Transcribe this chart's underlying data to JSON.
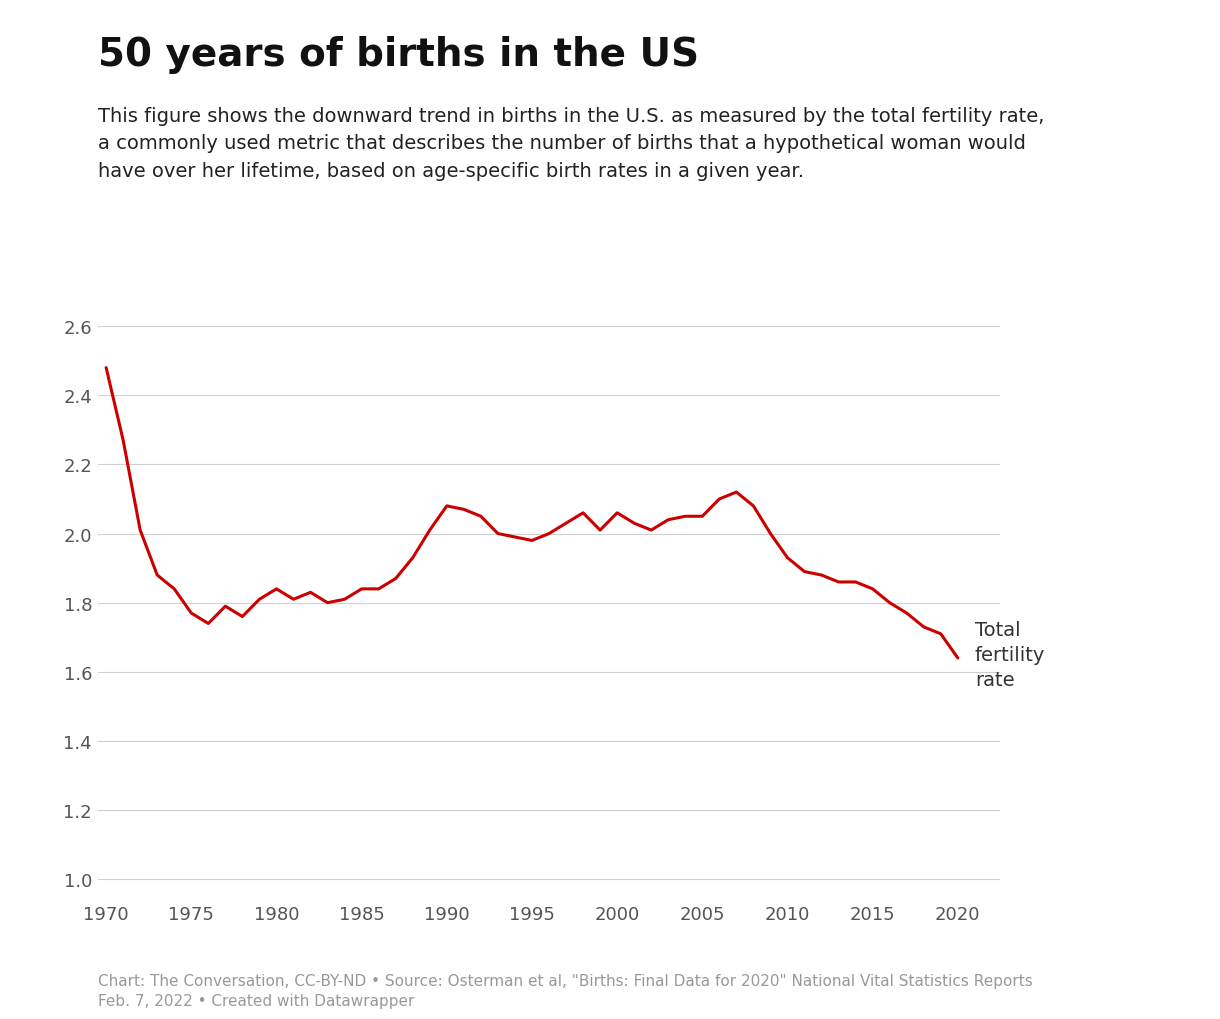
{
  "title": "50 years of births in the US",
  "subtitle": "This figure shows the downward trend in births in the U.S. as measured by the total fertility rate,\na commonly used metric that describes the number of births that a hypothetical woman would\nhave over her lifetime, based on age-specific birth rates in a given year.",
  "footnote": "Chart: The Conversation, CC-BY-ND • Source: Osterman et al, \"Births: Final Data for 2020\" National Vital Statistics Reports\nFeb. 7, 2022 • Created with Datawrapper",
  "line_color": "#cc0000",
  "line_label": "Total\nfertility\nrate",
  "background_color": "#ffffff",
  "years": [
    1970,
    1971,
    1972,
    1973,
    1974,
    1975,
    1976,
    1977,
    1978,
    1979,
    1980,
    1981,
    1982,
    1983,
    1984,
    1985,
    1986,
    1987,
    1988,
    1989,
    1990,
    1991,
    1992,
    1993,
    1994,
    1995,
    1996,
    1997,
    1998,
    1999,
    2000,
    2001,
    2002,
    2003,
    2004,
    2005,
    2006,
    2007,
    2008,
    2009,
    2010,
    2011,
    2012,
    2013,
    2014,
    2015,
    2016,
    2017,
    2018,
    2019,
    2020
  ],
  "values": [
    2.48,
    2.27,
    2.01,
    1.88,
    1.84,
    1.77,
    1.74,
    1.79,
    1.76,
    1.81,
    1.84,
    1.81,
    1.83,
    1.8,
    1.81,
    1.84,
    1.84,
    1.87,
    1.93,
    2.01,
    2.08,
    2.07,
    2.05,
    2.0,
    1.99,
    1.98,
    2.0,
    2.03,
    2.06,
    2.01,
    2.06,
    2.03,
    2.01,
    2.04,
    2.05,
    2.05,
    2.1,
    2.12,
    2.08,
    2.0,
    1.93,
    1.89,
    1.88,
    1.86,
    1.86,
    1.84,
    1.8,
    1.77,
    1.73,
    1.71,
    1.64
  ],
  "ylim": [
    0.95,
    2.72
  ],
  "yticks": [
    1.0,
    1.2,
    1.4,
    1.6,
    1.8,
    2.0,
    2.2,
    2.4,
    2.6
  ],
  "xlim": [
    1969.5,
    2022.5
  ],
  "xticks": [
    1970,
    1975,
    1980,
    1985,
    1990,
    1995,
    2000,
    2005,
    2010,
    2015,
    2020
  ],
  "title_fontsize": 28,
  "subtitle_fontsize": 14,
  "tick_fontsize": 13,
  "footnote_fontsize": 11,
  "label_fontsize": 14
}
